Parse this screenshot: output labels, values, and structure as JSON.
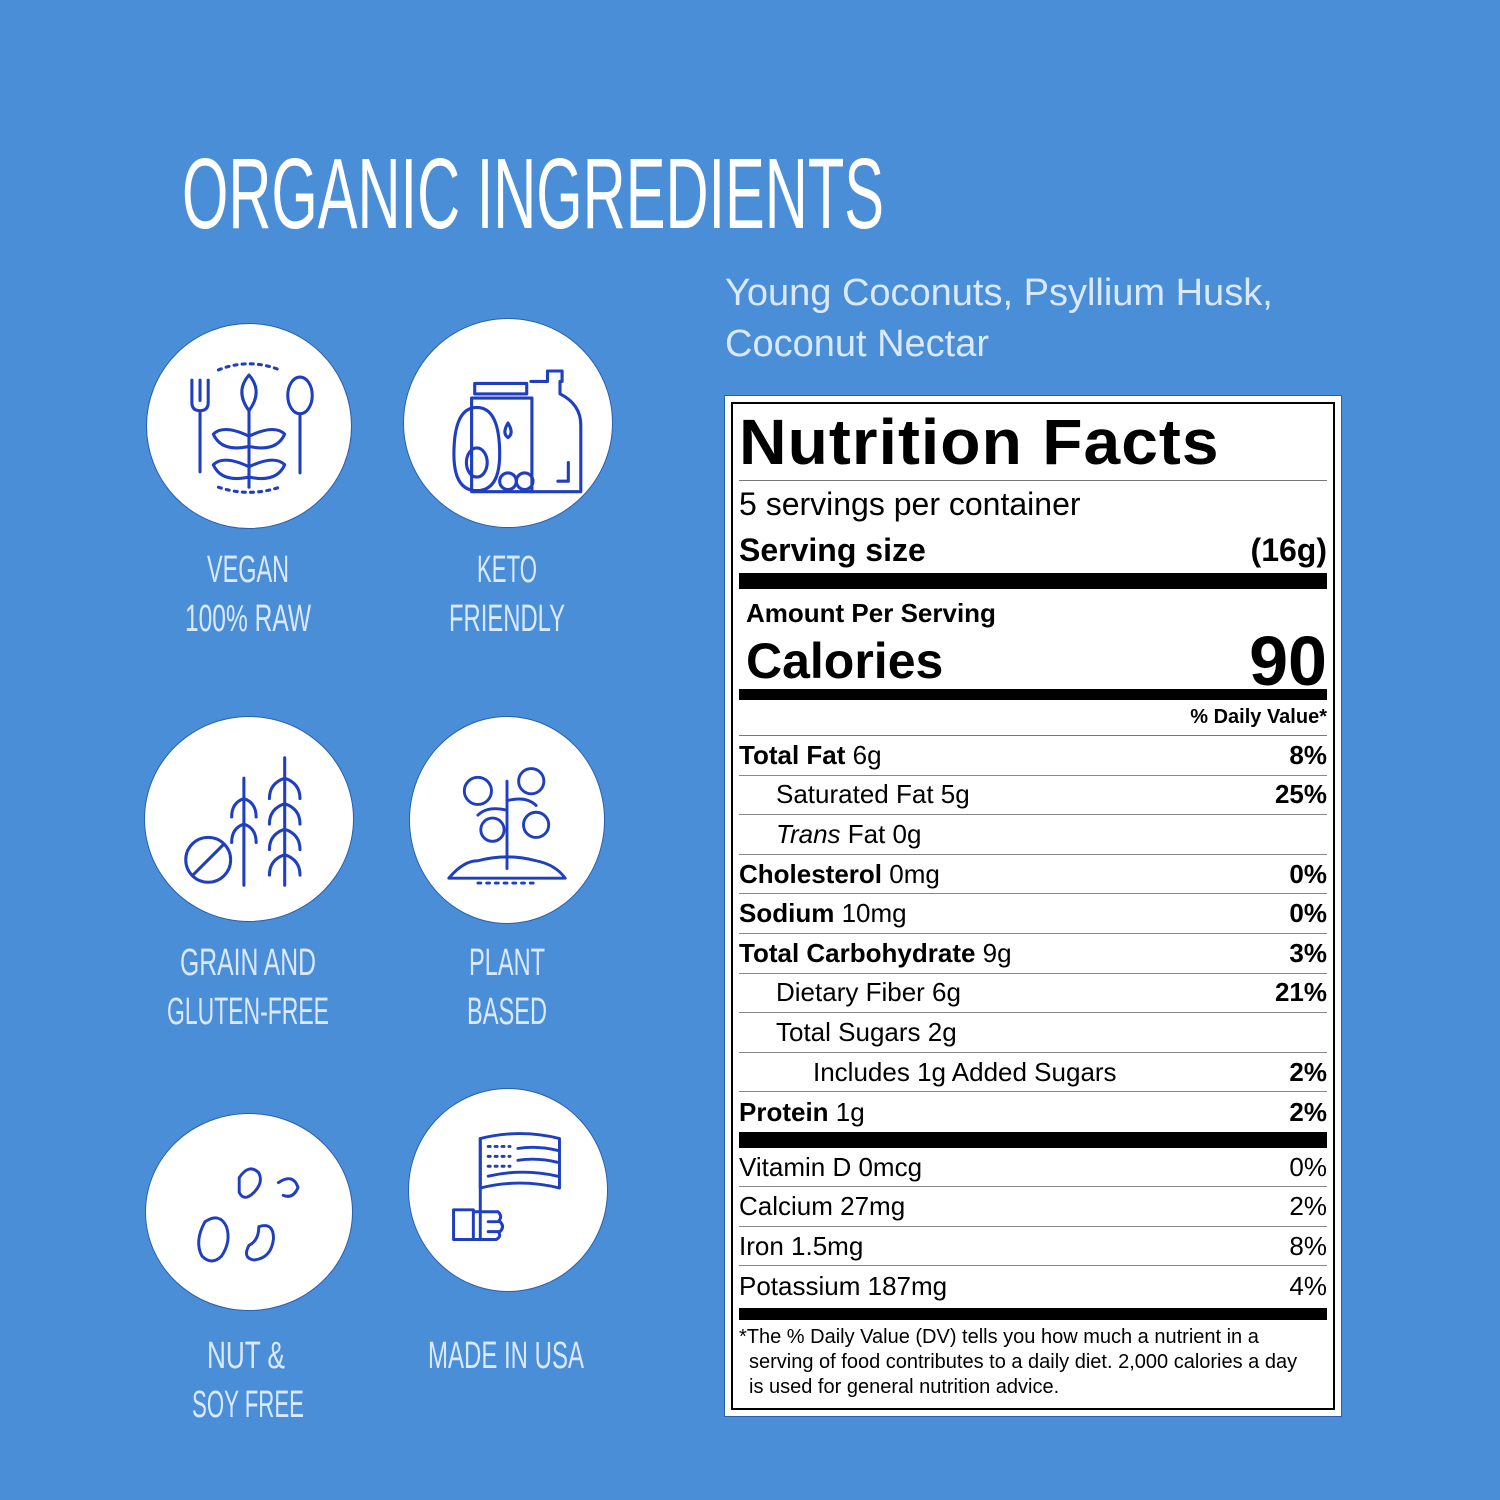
{
  "heading": "ORGANIC INGREDIENTS",
  "ingredients": {
    "line1": "Young Coconuts, Psyllium Husk,",
    "line2": "Coconut Nectar"
  },
  "badges": [
    {
      "icon": "vegan-plant-utensils-icon",
      "line1": "VEGAN",
      "line2": "100% RAW"
    },
    {
      "icon": "keto-foods-icon",
      "line1": "KETO",
      "line2": "FRIENDLY"
    },
    {
      "icon": "no-grain-wheat-icon",
      "line1": "GRAIN AND",
      "line2": "GLUTEN-FREE"
    },
    {
      "icon": "plant-sprout-icon",
      "line1": "PLANT",
      "line2": "BASED"
    },
    {
      "icon": "beans-icon",
      "line1": "NUT &",
      "line2": "SOY FREE"
    },
    {
      "icon": "usa-flag-hand-icon",
      "line1": "MADE IN USA",
      "line2": ""
    }
  ],
  "colors": {
    "background": "#4a8ed8",
    "icon": "#1f3fc0",
    "label_text": "#dbe9ff"
  },
  "nutrition": {
    "title": "Nutrition Facts",
    "servings": "5 servings per container",
    "serving_size_label": "Serving size",
    "serving_size_value": "(16g)",
    "amount_per_serving": "Amount Per Serving",
    "calories_label": "Calories",
    "calories_value": "90",
    "dv_header": "% Daily Value*",
    "nutrients": [
      {
        "name": "Total Fat",
        "amount": " 6g",
        "dv": "8%",
        "bold": true,
        "indent": 0
      },
      {
        "name": "Saturated Fat 5g",
        "amount": "",
        "dv": "25%",
        "bold": false,
        "indent": 1
      },
      {
        "name": "Trans",
        "amount": " Fat 0g",
        "dv": "",
        "bold": false,
        "indent": 1,
        "italic": true
      },
      {
        "name": "Cholesterol",
        "amount": " 0mg",
        "dv": "0%",
        "bold": true,
        "indent": 0
      },
      {
        "name": "Sodium",
        "amount": " 10mg",
        "dv": "0%",
        "bold": true,
        "indent": 0
      },
      {
        "name": "Total Carbohydrate",
        "amount": " 9g",
        "dv": "3%",
        "bold": true,
        "indent": 0
      },
      {
        "name": "Dietary Fiber 6g",
        "amount": "",
        "dv": "21%",
        "bold": false,
        "indent": 1
      },
      {
        "name": "Total Sugars 2g",
        "amount": "",
        "dv": "",
        "bold": false,
        "indent": 1
      },
      {
        "name": "Includes 1g Added Sugars",
        "amount": "",
        "dv": "2%",
        "bold": false,
        "indent": 2
      },
      {
        "name": "Protein",
        "amount": " 1g",
        "dv": "2%",
        "bold": true,
        "indent": 0
      }
    ],
    "vitamins": [
      {
        "name": "Vitamin D 0mcg",
        "dv": "0%"
      },
      {
        "name": "Calcium 27mg",
        "dv": "2%"
      },
      {
        "name": "Iron 1.5mg",
        "dv": "8%"
      },
      {
        "name": "Potassium 187mg",
        "dv": "4%"
      }
    ],
    "footnote": "*The % Daily Value (DV) tells you how much a nutrient in a serving of food contributes to a daily diet. 2,000 calories a day is used for general nutrition advice."
  }
}
